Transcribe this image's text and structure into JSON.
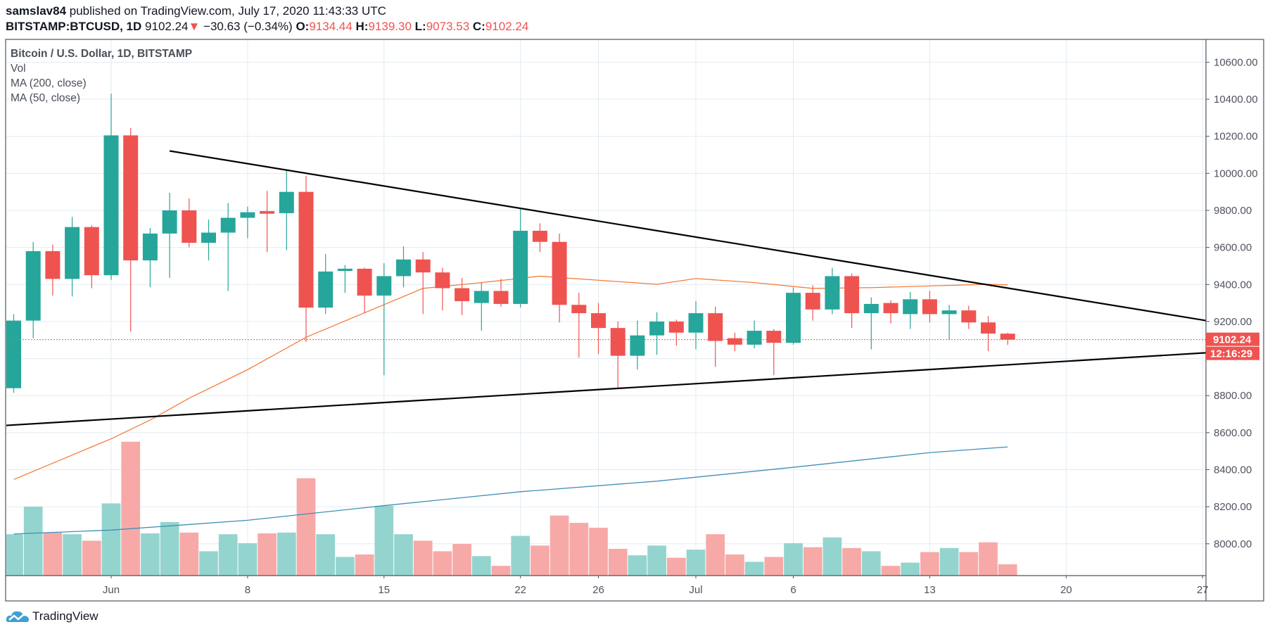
{
  "header": {
    "author": "samslav84",
    "published_text": "published on TradingView.com, July 17, 2020 11:43:33 UTC",
    "symbol": "BITSTAMP:BTCUSD, 1D",
    "last": "9102.24",
    "change": "−30.63 (−0.34%)",
    "o_label": "O:",
    "o": "9134.44",
    "h_label": "H:",
    "h": "9139.30",
    "l_label": "L:",
    "l": "9073.53",
    "c_label": "C:",
    "c": "9102.24"
  },
  "legend": {
    "title": "Bitcoin / U.S. Dollar, 1D, BITSTAMP",
    "vol": "Vol",
    "ma200": "MA (200, close)",
    "ma50": "MA (50, close)"
  },
  "footer": {
    "logo_text": "TradingView"
  },
  "colors": {
    "up": "#26a69a",
    "down": "#ef5350",
    "vol_up": "#94d4cf",
    "vol_down": "#f7a9a7",
    "ma50": "#f57c3a",
    "ma200": "#3f8fb5",
    "trendline": "#000000",
    "grid": "#e1ecf2"
  },
  "chart_data": {
    "type": "candlestick",
    "title": "Bitcoin / U.S. Dollar, 1D, BITSTAMP",
    "ylim": [
      7850,
      10720
    ],
    "y_ticks": [
      "10600.00",
      "10400.00",
      "10200.00",
      "10000.00",
      "9800.00",
      "9600.00",
      "9400.00",
      "9200.00",
      "8800.00",
      "8600.00",
      "8400.00",
      "8200.00",
      "8000.00"
    ],
    "y_tick_values": [
      10600,
      10400,
      10200,
      10000,
      9800,
      9600,
      9400,
      9200,
      8800,
      8600,
      8400,
      8200,
      8000
    ],
    "x_ticks": [
      {
        "label": "Jun",
        "day": 5
      },
      {
        "label": "8",
        "day": 12
      },
      {
        "label": "15",
        "day": 19
      },
      {
        "label": "22",
        "day": 26
      },
      {
        "label": "26",
        "day": 30
      },
      {
        "label": "Jul",
        "day": 35
      },
      {
        "label": "6",
        "day": 40
      },
      {
        "label": "13",
        "day": 47
      },
      {
        "label": "20",
        "day": 54
      },
      {
        "label": "27",
        "day": 61
      }
    ],
    "xlim_days": [
      -0.7,
      61.3
    ],
    "first_date": "2020-05-27",
    "last_price_label": "9102.24",
    "countdown_label": "12:16:29",
    "ohlc": [
      [
        8840,
        9240,
        8815,
        9205
      ],
      [
        9205,
        9630,
        9110,
        9580
      ],
      [
        9580,
        9615,
        9340,
        9430
      ],
      [
        9430,
        9765,
        9335,
        9710
      ],
      [
        9710,
        9720,
        9380,
        9450
      ],
      [
        9450,
        10430,
        9425,
        10205
      ],
      [
        10205,
        10245,
        9145,
        9530
      ],
      [
        9530,
        9705,
        9385,
        9675
      ],
      [
        9675,
        9895,
        9435,
        9800
      ],
      [
        9800,
        9865,
        9600,
        9625
      ],
      [
        9625,
        9750,
        9530,
        9680
      ],
      [
        9680,
        9840,
        9365,
        9760
      ],
      [
        9760,
        9820,
        9650,
        9790
      ],
      [
        9796,
        9905,
        9575,
        9782
      ],
      [
        9785,
        10015,
        9585,
        9900
      ],
      [
        9900,
        9985,
        9090,
        9275
      ],
      [
        9275,
        9565,
        9240,
        9470
      ],
      [
        9473,
        9505,
        9355,
        9485
      ],
      [
        9485,
        9490,
        9245,
        9340
      ],
      [
        9340,
        9515,
        8910,
        9445
      ],
      [
        9445,
        9605,
        9385,
        9535
      ],
      [
        9535,
        9575,
        9240,
        9465
      ],
      [
        9465,
        9490,
        9260,
        9380
      ],
      [
        9380,
        9435,
        9235,
        9310
      ],
      [
        9300,
        9410,
        9150,
        9365
      ],
      [
        9365,
        9430,
        9280,
        9295
      ],
      [
        9295,
        9810,
        9275,
        9690
      ],
      [
        9690,
        9730,
        9575,
        9630
      ],
      [
        9630,
        9675,
        9195,
        9290
      ],
      [
        9290,
        9355,
        9005,
        9245
      ],
      [
        9245,
        9300,
        9025,
        9165
      ],
      [
        9165,
        9200,
        8840,
        9015
      ],
      [
        9015,
        9205,
        8940,
        9125
      ],
      [
        9125,
        9250,
        9020,
        9200
      ],
      [
        9200,
        9210,
        9070,
        9140
      ],
      [
        9140,
        9310,
        9050,
        9245
      ],
      [
        9245,
        9280,
        8955,
        9095
      ],
      [
        9110,
        9140,
        9040,
        9075
      ],
      [
        9075,
        9205,
        9055,
        9150
      ],
      [
        9150,
        9160,
        8910,
        9085
      ],
      [
        9085,
        9385,
        9075,
        9355
      ],
      [
        9355,
        9395,
        9205,
        9265
      ],
      [
        9265,
        9490,
        9240,
        9445
      ],
      [
        9445,
        9460,
        9165,
        9245
      ],
      [
        9245,
        9330,
        9050,
        9295
      ],
      [
        9300,
        9315,
        9190,
        9245
      ],
      [
        9240,
        9360,
        9160,
        9320
      ],
      [
        9320,
        9365,
        9195,
        9240
      ],
      [
        9240,
        9290,
        9100,
        9260
      ],
      [
        9260,
        9285,
        9160,
        9195
      ],
      [
        9195,
        9230,
        9040,
        9135
      ],
      [
        9134.44,
        9139.3,
        9073.53,
        9102.24
      ]
    ],
    "volume_relative": [
      51,
      85,
      53,
      51,
      43,
      89,
      165,
      52,
      66,
      53,
      30,
      51,
      40,
      52,
      53,
      120,
      51,
      23,
      26,
      86,
      51,
      43,
      30,
      39,
      24,
      12,
      49,
      37,
      74,
      65,
      59,
      33,
      25,
      37,
      22,
      32,
      51,
      26,
      17,
      23,
      40,
      35,
      47,
      34,
      30,
      12,
      16,
      29,
      34,
      29,
      41,
      14
    ],
    "ma50": [
      [
        0,
        8347
      ],
      [
        5,
        8567
      ],
      [
        7,
        8668
      ],
      [
        9,
        8786
      ],
      [
        12,
        8940
      ],
      [
        15,
        9115
      ],
      [
        18,
        9247
      ],
      [
        21,
        9379
      ],
      [
        24,
        9410
      ],
      [
        27,
        9445
      ],
      [
        30,
        9423
      ],
      [
        33,
        9401
      ],
      [
        35,
        9432
      ],
      [
        38,
        9410
      ],
      [
        41,
        9379
      ],
      [
        44,
        9383
      ],
      [
        47,
        9392
      ],
      [
        50,
        9401
      ],
      [
        51,
        9398
      ]
    ],
    "ma200": [
      [
        0,
        8053
      ],
      [
        5,
        8074
      ],
      [
        12,
        8127
      ],
      [
        19,
        8206
      ],
      [
        26,
        8281
      ],
      [
        33,
        8338
      ],
      [
        40,
        8413
      ],
      [
        47,
        8492
      ],
      [
        51,
        8523
      ]
    ],
    "trendlines": [
      {
        "name": "upper-trendline",
        "points": [
          [
            8,
            10121
          ],
          [
            61.3,
            9203
          ]
        ]
      },
      {
        "name": "lower-trendline",
        "points": [
          [
            -0.7,
            8637
          ],
          [
            61.3,
            9032
          ]
        ]
      }
    ]
  }
}
